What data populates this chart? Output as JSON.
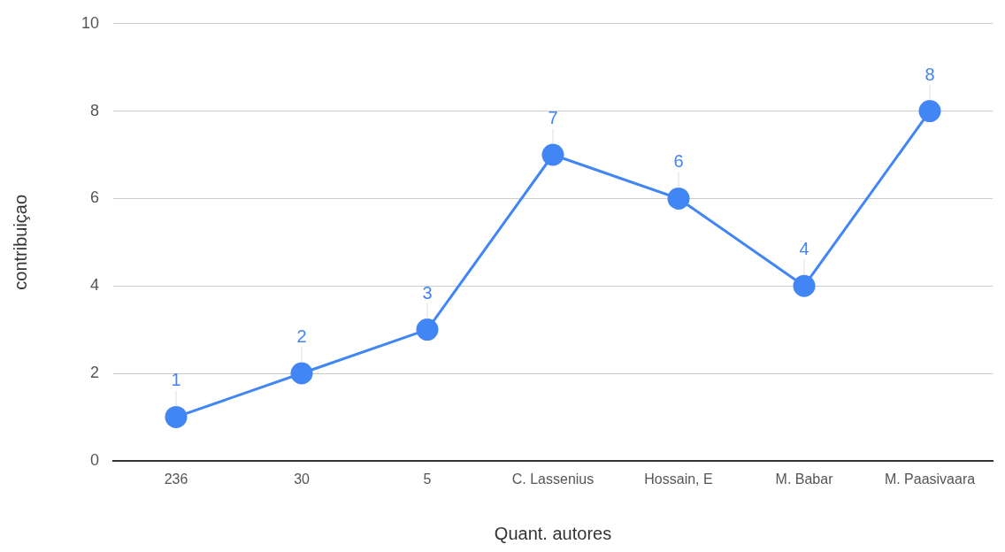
{
  "chart_data": {
    "type": "line",
    "xlabel": "Quant. autores",
    "ylabel": "contribuiçao",
    "categories": [
      "236",
      "30",
      "5",
      "C. Lassenius",
      "Hossain, E",
      "M. Babar",
      "M. Paasivaara"
    ],
    "series": [
      {
        "color": "#4285f4",
        "values": [
          1,
          2,
          3,
          7,
          6,
          4,
          8
        ]
      }
    ],
    "ylim": [
      0,
      10
    ],
    "yticks": [
      0,
      2,
      4,
      6,
      8,
      10
    ],
    "grid": "y",
    "marker": "circle",
    "line_style": "solid",
    "data_labels": true,
    "legend": false
  }
}
